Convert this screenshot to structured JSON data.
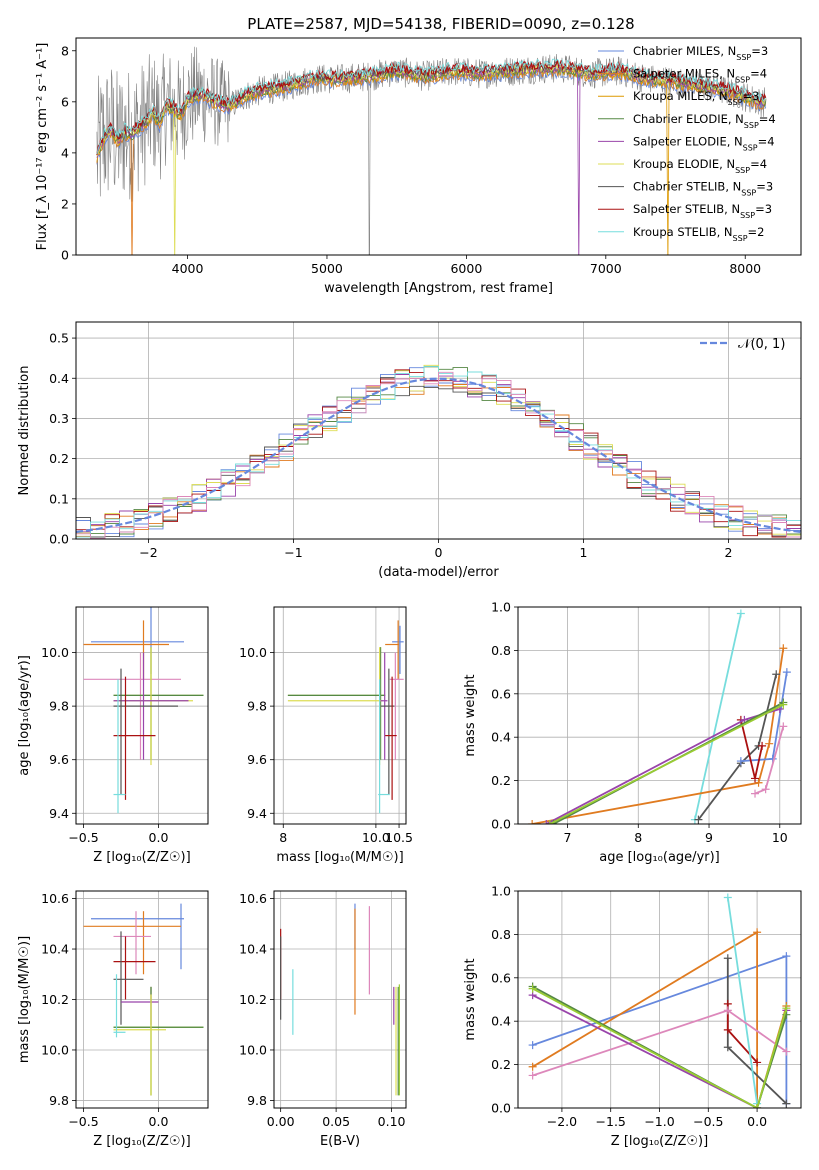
{
  "figure_title": "PLATE=2587, MJD=54138, FIBERID=0090, z=0.128",
  "colors": [
    "#6688dd",
    "#e07b20",
    "#dd9900",
    "#558844",
    "#9944aa",
    "#dddd55",
    "#555555",
    "#aa1111",
    "#77dddd",
    "#dd88bb",
    "#99cc33"
  ],
  "chart_data": [
    {
      "id": "spectrum",
      "type": "line",
      "title": "PLATE=2587, MJD=54138, FIBERID=0090, z=0.128",
      "xlabel": "wavelength [Angstrom, rest frame]",
      "ylabel": "Flux [f_λ 10⁻¹⁷ erg cm⁻² s⁻¹ A⁻¹]",
      "xlim": [
        3200,
        8400
      ],
      "ylim": [
        0,
        8.5
      ],
      "xticks": [
        "4000",
        "5000",
        "6000",
        "7000",
        "8000"
      ],
      "yticks": [
        "0",
        "2",
        "4",
        "6",
        "8"
      ],
      "grid": false,
      "legend": "upper-right",
      "series": [
        {
          "name": "Chabrier MILES, N_SSP=3",
          "color": "#6688dd"
        },
        {
          "name": "Salpeter MILES, N_SSP=4",
          "color": "#e07b20"
        },
        {
          "name": "Kroupa MILES, N_SSP=3",
          "color": "#dd9900"
        },
        {
          "name": "Chabrier ELODIE, N_SSP=4",
          "color": "#558844"
        },
        {
          "name": "Salpeter ELODIE, N_SSP=4",
          "color": "#9944aa"
        },
        {
          "name": "Kroupa ELODIE, N_SSP=4",
          "color": "#dddd55"
        },
        {
          "name": "Chabrier STELIB, N_SSP=3",
          "color": "#555555"
        },
        {
          "name": "Salpeter STELIB, N_SSP=3",
          "color": "#aa1111"
        },
        {
          "name": "Kroupa STELIB, N_SSP=2",
          "color": "#77dddd"
        }
      ],
      "model_curve": {
        "x": [
          3350,
          3400,
          3450,
          3500,
          3550,
          3600,
          3650,
          3700,
          3750,
          3800,
          3850,
          3900,
          3950,
          4000,
          4100,
          4200,
          4300,
          4400,
          4500,
          4700,
          4900,
          5100,
          5300,
          5500,
          5700,
          5900,
          6100,
          6300,
          6500,
          6700,
          6900,
          7100,
          7300,
          7500,
          7700,
          7900,
          8100
        ],
        "y": [
          3.9,
          4.6,
          4.9,
          4.5,
          4.8,
          4.7,
          5.0,
          5.2,
          5.6,
          5.2,
          5.9,
          5.7,
          5.5,
          6.1,
          6.3,
          6.0,
          5.8,
          6.2,
          6.4,
          6.6,
          6.9,
          6.9,
          7.0,
          7.2,
          7.0,
          7.2,
          7.1,
          7.2,
          7.3,
          7.3,
          7.1,
          7.2,
          6.9,
          6.8,
          6.6,
          6.4,
          6.0
        ]
      },
      "data_band": {
        "description_free": true,
        "noise_amplitude_blue": 2.5,
        "noise_amplitude_red": 0.6
      }
    },
    {
      "id": "residuals",
      "type": "histogram",
      "xlabel": "(data-model)/error",
      "ylabel": "Normed distribution",
      "xlim": [
        -2.5,
        2.5
      ],
      "ylim": [
        0,
        0.54
      ],
      "xticks": [
        "−2",
        "−1",
        "0",
        "1",
        "2"
      ],
      "yticks": [
        "0.0",
        "0.1",
        "0.2",
        "0.3",
        "0.4",
        "0.5"
      ],
      "grid": true,
      "legend_label": "𝒩(0, 1)",
      "legend": "upper-right",
      "bin_width": 0.1,
      "reference_curve": "normal(0,1)"
    },
    {
      "id": "age-vs-z",
      "type": "errorbar",
      "xlabel": "Z [log₁₀(Z/Z☉)]",
      "ylabel": "age  [log₁₀(age/yr)]",
      "xlim": [
        -0.55,
        0.33
      ],
      "ylim": [
        9.36,
        10.17
      ],
      "xticks": [
        "−0.5",
        "0.0"
      ],
      "yticks": [
        "9.4",
        "9.6",
        "9.8",
        "10.0"
      ],
      "grid": true,
      "points": [
        {
          "c": 0,
          "x": -0.05,
          "y": 10.04,
          "xl": -0.45,
          "xh": 0.17,
          "yl": 9.92,
          "yh": 10.17
        },
        {
          "c": 1,
          "x": -0.1,
          "y": 10.03,
          "xl": -0.5,
          "xh": 0.07,
          "yl": 9.9,
          "yh": 10.12
        },
        {
          "c": 9,
          "x": -0.12,
          "y": 9.9,
          "xl": -0.5,
          "xh": 0.15,
          "yl": 9.6,
          "yh": 10.0
        },
        {
          "c": 10,
          "x": -0.05,
          "y": 9.84,
          "xl": -0.3,
          "xh": 0.3,
          "yl": 9.6,
          "yh": 10.02
        },
        {
          "c": 3,
          "x": -0.05,
          "y": 9.84,
          "xl": -0.3,
          "xh": 0.3,
          "yl": 9.6,
          "yh": 10.02
        },
        {
          "c": 5,
          "x": -0.05,
          "y": 9.82,
          "xl": -0.3,
          "xh": 0.23,
          "yl": 9.58,
          "yh": 10.02
        },
        {
          "c": 4,
          "x": -0.1,
          "y": 9.82,
          "xl": -0.3,
          "xh": 0.2,
          "yl": 9.6,
          "yh": 10.0
        },
        {
          "c": 6,
          "x": -0.25,
          "y": 9.8,
          "xl": -0.3,
          "xh": 0.13,
          "yl": 9.47,
          "yh": 9.94
        },
        {
          "c": 7,
          "x": -0.22,
          "y": 9.69,
          "xl": -0.3,
          "xh": -0.02,
          "yl": 9.45,
          "yh": 9.91
        },
        {
          "c": 8,
          "x": -0.27,
          "y": 9.47,
          "xl": -0.3,
          "xh": -0.22,
          "yl": 9.4,
          "yh": 9.9
        }
      ]
    },
    {
      "id": "age-vs-mass",
      "type": "errorbar",
      "xlabel": "mass [log₁₀(M/M☉)]",
      "ylabel": "",
      "xlim": [
        7.8,
        10.65
      ],
      "ylim": [
        9.36,
        10.17
      ],
      "xticks": [
        "8",
        "10.0",
        "10.5"
      ],
      "xtick_values": [
        8.0,
        10.0,
        10.5
      ],
      "yticks": [
        "9.4",
        "9.6",
        "9.8",
        "10.0"
      ],
      "grid": true,
      "points": [
        {
          "c": 0,
          "x": 10.52,
          "y": 10.04,
          "xl": 10.35,
          "xh": 10.6,
          "yl": 9.92,
          "yh": 10.1
        },
        {
          "c": 1,
          "x": 10.48,
          "y": 10.03,
          "xl": 10.2,
          "xh": 10.5,
          "yl": 9.9,
          "yh": 10.12
        },
        {
          "c": 9,
          "x": 10.42,
          "y": 9.9,
          "xl": 10.3,
          "xh": 10.6,
          "yl": 9.6,
          "yh": 10.0
        },
        {
          "c": 10,
          "x": 10.1,
          "y": 9.84,
          "xl": 8.1,
          "xh": 10.2,
          "yl": 9.6,
          "yh": 10.02
        },
        {
          "c": 3,
          "x": 10.1,
          "y": 9.84,
          "xl": 8.1,
          "xh": 10.2,
          "yl": 9.6,
          "yh": 10.02
        },
        {
          "c": 5,
          "x": 10.08,
          "y": 9.82,
          "xl": 8.1,
          "xh": 10.15,
          "yl": 9.58,
          "yh": 10.02
        },
        {
          "c": 4,
          "x": 10.19,
          "y": 9.82,
          "xl": 10.1,
          "xh": 10.25,
          "yl": 9.6,
          "yh": 10.0
        },
        {
          "c": 6,
          "x": 10.28,
          "y": 9.8,
          "xl": 10.1,
          "xh": 10.4,
          "yl": 9.47,
          "yh": 9.94
        },
        {
          "c": 7,
          "x": 10.35,
          "y": 9.69,
          "xl": 10.2,
          "xh": 10.45,
          "yl": 9.45,
          "yh": 9.91
        },
        {
          "c": 8,
          "x": 10.08,
          "y": 9.47,
          "xl": 10.05,
          "xh": 10.3,
          "yl": 9.4,
          "yh": 9.9
        }
      ]
    },
    {
      "id": "weight-vs-age",
      "type": "line",
      "xlabel": "age  [log₁₀(age/yr)]",
      "ylabel": "mass weight",
      "xlim": [
        6.3,
        10.3
      ],
      "ylim": [
        0,
        1.0
      ],
      "xticks": [
        "7",
        "8",
        "9",
        "10"
      ],
      "yticks": [
        "0.0",
        "0.2",
        "0.4",
        "0.6",
        "0.8",
        "1.0"
      ],
      "grid": true,
      "series": [
        {
          "c": 8,
          "x": [
            8.8,
            9.45
          ],
          "y": [
            0.02,
            0.97
          ]
        },
        {
          "c": 1,
          "x": [
            6.5,
            9.7,
            9.85,
            10.05
          ],
          "y": [
            0.0,
            0.19,
            0.37,
            0.81
          ]
        },
        {
          "c": 6,
          "x": [
            8.85,
            9.45,
            9.7,
            9.95
          ],
          "y": [
            0.02,
            0.28,
            0.36,
            0.69
          ]
        },
        {
          "c": 0,
          "x": [
            9.45,
            9.9,
            10.1
          ],
          "y": [
            0.29,
            0.3,
            0.7
          ]
        },
        {
          "c": 7,
          "x": [
            9.45,
            9.65,
            9.75
          ],
          "y": [
            0.48,
            0.21,
            0.36
          ]
        },
        {
          "c": 4,
          "x": [
            6.7,
            9.5,
            10.0
          ],
          "y": [
            0.0,
            0.48,
            0.53
          ]
        },
        {
          "c": 3,
          "x": [
            6.8,
            10.05
          ],
          "y": [
            0.0,
            0.56
          ]
        },
        {
          "c": 10,
          "x": [
            6.75,
            10.05
          ],
          "y": [
            0.0,
            0.55
          ]
        },
        {
          "c": 9,
          "x": [
            9.65,
            9.8,
            10.05
          ],
          "y": [
            0.14,
            0.16,
            0.45
          ]
        }
      ]
    },
    {
      "id": "mass-vs-z",
      "type": "errorbar",
      "xlabel": "Z [log₁₀(Z/Z☉)]",
      "ylabel": "mass [log₁₀(M/M☉)]",
      "xlim": [
        -0.55,
        0.33
      ],
      "ylim": [
        9.77,
        10.63
      ],
      "xticks": [
        "−0.5",
        "0.0"
      ],
      "yticks": [
        "9.8",
        "10.0",
        "10.2",
        "10.4",
        "10.6"
      ],
      "grid": true,
      "points": [
        {
          "c": 0,
          "x": 0.15,
          "y": 10.52,
          "xl": -0.45,
          "xh": 0.17,
          "yl": 10.32,
          "yh": 10.58
        },
        {
          "c": 1,
          "x": -0.1,
          "y": 10.49,
          "xl": -0.5,
          "xh": 0.15,
          "yl": 10.3,
          "yh": 10.55
        },
        {
          "c": 9,
          "x": -0.15,
          "y": 10.45,
          "xl": -0.3,
          "xh": -0.05,
          "yl": 10.3,
          "yh": 10.55
        },
        {
          "c": 7,
          "x": -0.22,
          "y": 10.35,
          "xl": -0.3,
          "xh": -0.02,
          "yl": 10.2,
          "yh": 10.45
        },
        {
          "c": 6,
          "x": -0.25,
          "y": 10.28,
          "xl": -0.3,
          "xh": -0.1,
          "yl": 10.1,
          "yh": 10.47
        },
        {
          "c": 4,
          "x": -0.05,
          "y": 10.19,
          "xl": -0.25,
          "xh": 0.0,
          "yl": 10.1,
          "yh": 10.25
        },
        {
          "c": 10,
          "x": -0.05,
          "y": 10.09,
          "xl": -0.3,
          "xh": 0.3,
          "yl": 9.82,
          "yh": 10.25
        },
        {
          "c": 3,
          "x": -0.05,
          "y": 10.09,
          "xl": -0.3,
          "xh": 0.3,
          "yl": 9.82,
          "yh": 10.25
        },
        {
          "c": 5,
          "x": -0.05,
          "y": 10.08,
          "xl": -0.3,
          "xh": 0.05,
          "yl": 9.82,
          "yh": 10.22
        },
        {
          "c": 8,
          "x": -0.28,
          "y": 10.07,
          "xl": -0.3,
          "xh": -0.22,
          "yl": 10.05,
          "yh": 10.3
        }
      ]
    },
    {
      "id": "mass-vs-ebv",
      "type": "errorbar",
      "xlabel": "E(B-V)",
      "ylabel": "",
      "xlim": [
        -0.006,
        0.113
      ],
      "ylim": [
        9.77,
        10.63
      ],
      "xticks": [
        "0.00",
        "0.05",
        "0.10"
      ],
      "xtick_values": [
        0.0,
        0.05,
        0.1
      ],
      "yticks": [
        "9.8",
        "10.0",
        "10.2",
        "10.4",
        "10.6"
      ],
      "grid": true,
      "points": [
        {
          "c": 7,
          "x": 0.0,
          "y": 10.35,
          "yl": 10.2,
          "yh": 10.48
        },
        {
          "c": 6,
          "x": 0.0,
          "y": 10.28,
          "yl": 10.12,
          "yh": 10.45
        },
        {
          "c": 8,
          "x": 0.011,
          "y": 10.2,
          "yl": 10.06,
          "yh": 10.32
        },
        {
          "c": 0,
          "x": 0.067,
          "y": 10.52,
          "yl": 10.4,
          "yh": 10.58
        },
        {
          "c": 1,
          "x": 0.067,
          "y": 10.49,
          "yl": 10.14,
          "yh": 10.56
        },
        {
          "c": 9,
          "x": 0.08,
          "y": 10.45,
          "yl": 10.22,
          "yh": 10.57
        },
        {
          "c": 4,
          "x": 0.102,
          "y": 10.19,
          "yl": 10.1,
          "yh": 10.25
        },
        {
          "c": 5,
          "x": 0.104,
          "y": 10.08,
          "yl": 9.82,
          "yh": 10.25
        },
        {
          "c": 3,
          "x": 0.106,
          "y": 10.09,
          "yl": 9.82,
          "yh": 10.25
        },
        {
          "c": 10,
          "x": 0.107,
          "y": 10.09,
          "yl": 9.82,
          "yh": 10.26
        }
      ]
    },
    {
      "id": "weight-vs-z",
      "type": "line",
      "xlabel": "Z [log₁₀(Z/Z☉)]",
      "ylabel": "mass weight",
      "xlim": [
        -2.45,
        0.45
      ],
      "ylim": [
        0,
        1.0
      ],
      "xticks": [
        "−2.0",
        "−1.5",
        "−1.0",
        "−0.5",
        "0.0"
      ],
      "xtick_values": [
        -2.0,
        -1.5,
        -1.0,
        -0.5,
        0.0
      ],
      "yticks": [
        "0.0",
        "0.2",
        "0.4",
        "0.6",
        "0.8",
        "1.0"
      ],
      "grid": true,
      "series": [
        {
          "c": 0,
          "x": [
            -2.3,
            0.3,
            0.3
          ],
          "y": [
            0.29,
            0.7,
            0.02
          ]
        },
        {
          "c": 1,
          "x": [
            -2.3,
            0.0,
            0.0,
            0.3
          ],
          "y": [
            0.19,
            0.81,
            0.0,
            0.47
          ]
        },
        {
          "c": 6,
          "x": [
            -0.3,
            -0.3,
            0.3
          ],
          "y": [
            0.69,
            0.28,
            0.02
          ]
        },
        {
          "c": 7,
          "x": [
            -0.3,
            -0.3,
            0.0
          ],
          "y": [
            0.48,
            0.36,
            0.21
          ]
        },
        {
          "c": 8,
          "x": [
            -0.3,
            0.0
          ],
          "y": [
            0.97,
            0.02
          ]
        },
        {
          "c": 9,
          "x": [
            -2.3,
            -0.3,
            0.3
          ],
          "y": [
            0.15,
            0.45,
            0.26
          ]
        },
        {
          "c": 4,
          "x": [
            -2.3,
            0.0,
            0.3
          ],
          "y": [
            0.52,
            0.0,
            0.45
          ]
        },
        {
          "c": 3,
          "x": [
            -2.3,
            0.0,
            0.3
          ],
          "y": [
            0.56,
            0.0,
            0.43
          ]
        },
        {
          "c": 10,
          "x": [
            -2.3,
            0.0,
            0.3
          ],
          "y": [
            0.55,
            0.0,
            0.46
          ]
        }
      ]
    }
  ]
}
